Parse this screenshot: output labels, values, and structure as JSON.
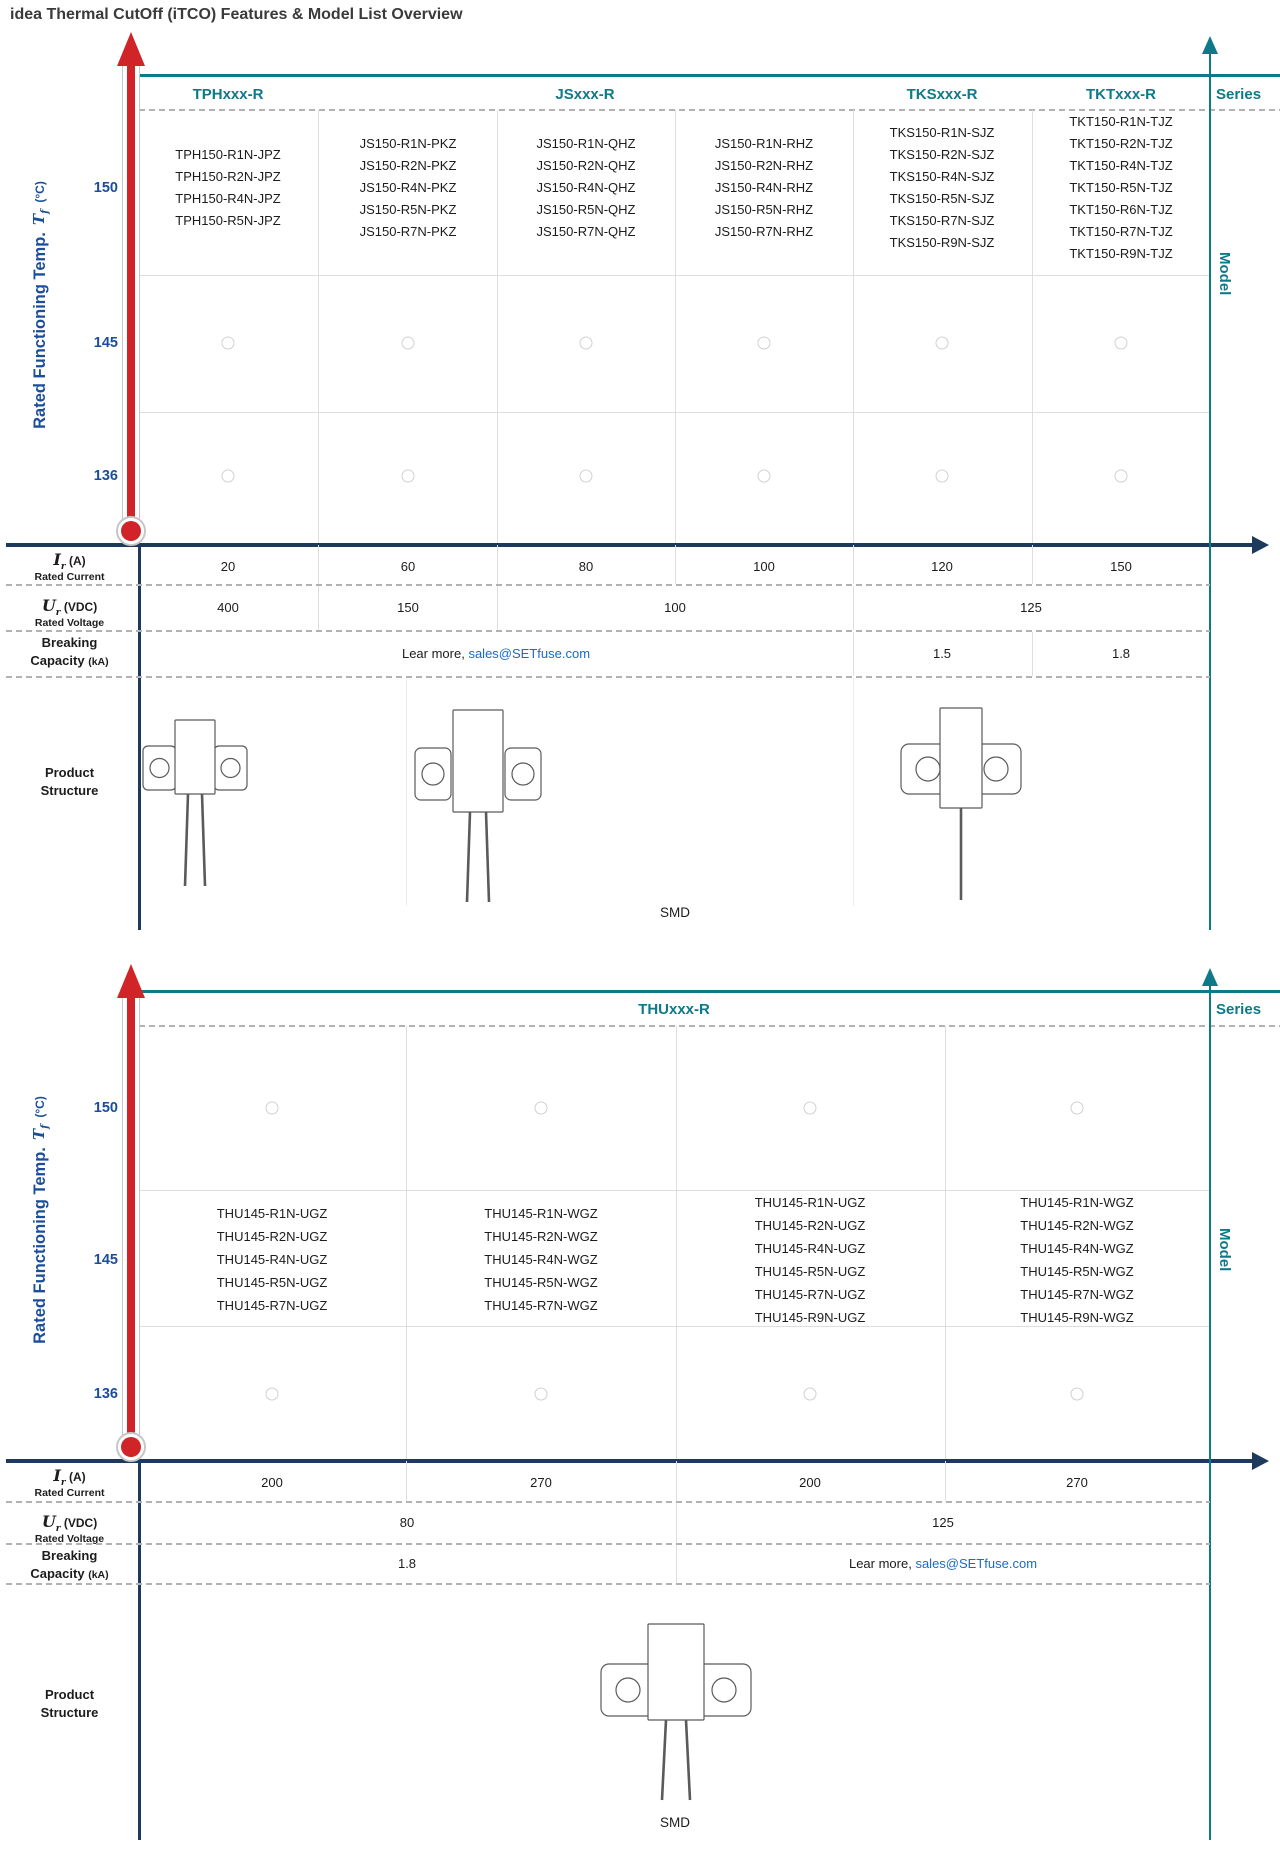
{
  "title": "idea Thermal CutOff (iTCO) Features & Model List Overview",
  "axis": {
    "y_label": "Rated Functioning Temp.",
    "y_unit_symbol": "T",
    "y_unit_sub": "f",
    "y_unit_degrees": "(°C)",
    "series_label": "Series",
    "model_label": "Model"
  },
  "row_labels": {
    "current_symbol": "I",
    "current_sub": "r",
    "current_unit": "(A)",
    "current_name": "Rated Current",
    "voltage_symbol": "U",
    "voltage_sub": "r",
    "voltage_unit": "(VDC)",
    "voltage_name": "Rated Voltage",
    "breaking_line1": "Breaking",
    "breaking_line2": "Capacity",
    "breaking_unit": "(kA)",
    "product_line1": "Product",
    "product_line2": "Structure"
  },
  "contact": {
    "prefix": "Lear more, ",
    "email": "sales@SETfuse.com"
  },
  "table1": {
    "series_headers": [
      "TPHxxx-R",
      "JSxxx-R",
      "TKSxxx-R",
      "TKTxxx-R"
    ],
    "temps": [
      "150",
      "145",
      "136"
    ],
    "model_columns": [
      [
        "TPH150-R1N-JPZ",
        "TPH150-R2N-JPZ",
        "TPH150-R4N-JPZ",
        "TPH150-R5N-JPZ"
      ],
      [
        "JS150-R1N-PKZ",
        "JS150-R2N-PKZ",
        "JS150-R4N-PKZ",
        "JS150-R5N-PKZ",
        "JS150-R7N-PKZ"
      ],
      [
        "JS150-R1N-QHZ",
        "JS150-R2N-QHZ",
        "JS150-R4N-QHZ",
        "JS150-R5N-QHZ",
        "JS150-R7N-QHZ"
      ],
      [
        "JS150-R1N-RHZ",
        "JS150-R2N-RHZ",
        "JS150-R4N-RHZ",
        "JS150-R5N-RHZ",
        "JS150-R7N-RHZ"
      ],
      [
        "TKS150-R1N-SJZ",
        "TKS150-R2N-SJZ",
        "TKS150-R4N-SJZ",
        "TKS150-R5N-SJZ",
        "TKS150-R7N-SJZ",
        "TKS150-R9N-SJZ"
      ],
      [
        "TKT150-R1N-TJZ",
        "TKT150-R2N-TJZ",
        "TKT150-R4N-TJZ",
        "TKT150-R5N-TJZ",
        "TKT150-R6N-TJZ",
        "TKT150-R7N-TJZ",
        "TKT150-R9N-TJZ"
      ]
    ],
    "rated_current": [
      "20",
      "60",
      "80",
      "100",
      "120",
      "150"
    ],
    "rated_voltage": [
      "400",
      "150",
      "100",
      "125"
    ],
    "breaking_values": [
      "1.5",
      "1.8"
    ],
    "mount_type": "SMD"
  },
  "table2": {
    "series_headers": [
      "THUxxx-R"
    ],
    "temps": [
      "150",
      "145",
      "136"
    ],
    "model_columns": [
      [
        "THU145-R1N-UGZ",
        "THU145-R2N-UGZ",
        "THU145-R4N-UGZ",
        "THU145-R5N-UGZ",
        "THU145-R7N-UGZ"
      ],
      [
        "THU145-R1N-WGZ",
        "THU145-R2N-WGZ",
        "THU145-R4N-WGZ",
        "THU145-R5N-WGZ",
        "THU145-R7N-WGZ"
      ],
      [
        "THU145-R1N-UGZ",
        "THU145-R2N-UGZ",
        "THU145-R4N-UGZ",
        "THU145-R5N-UGZ",
        "THU145-R7N-UGZ",
        "THU145-R9N-UGZ"
      ],
      [
        "THU145-R1N-WGZ",
        "THU145-R2N-WGZ",
        "THU145-R4N-WGZ",
        "THU145-R5N-WGZ",
        "THU145-R7N-WGZ",
        "THU145-R9N-WGZ"
      ]
    ],
    "rated_current": [
      "200",
      "270",
      "200",
      "270"
    ],
    "rated_voltage": [
      "80",
      "125"
    ],
    "breaking_values": [
      "1.8"
    ],
    "mount_type": "SMD"
  },
  "colors": {
    "teal": "#0f7a87",
    "navy": "#1d3a5c",
    "blue": "#1a4e9b",
    "red": "#d02428",
    "link_blue": "#1b6ac9"
  }
}
